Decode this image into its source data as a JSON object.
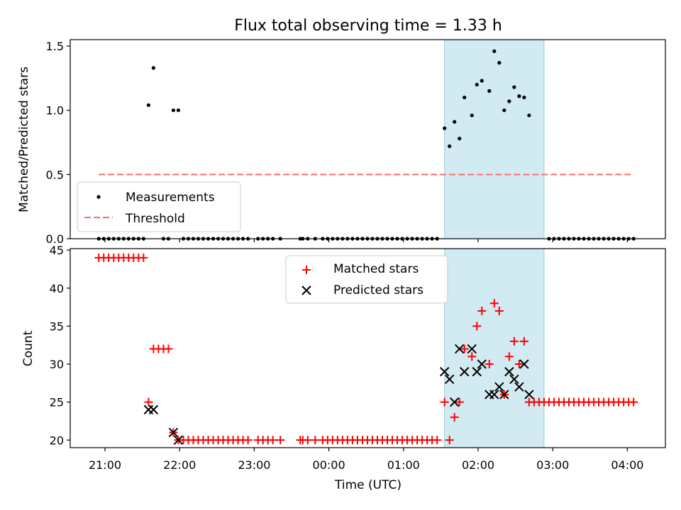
{
  "chart_data": [
    {
      "panel": "top",
      "type": "scatter",
      "title": "Flux total observing time = 1.33 h",
      "ylabel": "Matched/Predicted stars",
      "ylim": [
        0,
        1.55
      ],
      "yticks": [
        0.0,
        0.5,
        1.0,
        1.5
      ],
      "ytick_labels": [
        "0.0",
        "0.5",
        "1.0",
        "1.5"
      ],
      "shaded_interval": {
        "start": "01:33",
        "end": "02:53",
        "color": "#add8e6"
      },
      "legend": {
        "position": "lower-left",
        "entries": [
          "Measurements",
          "Threshold"
        ]
      },
      "threshold": {
        "name": "Threshold",
        "value": 0.5,
        "x_start": "20:55",
        "x_end": "04:05",
        "color": "#ff6b6b",
        "style": "dashed"
      },
      "series": [
        {
          "name": "Measurements",
          "marker": "dot",
          "color": "#000000",
          "points": [
            [
              "20:55",
              0
            ],
            [
              "20:59",
              0
            ],
            [
              "21:03",
              0
            ],
            [
              "21:07",
              0
            ],
            [
              "21:11",
              0
            ],
            [
              "21:15",
              0
            ],
            [
              "21:19",
              0
            ],
            [
              "21:23",
              0
            ],
            [
              "21:27",
              0
            ],
            [
              "21:31",
              0
            ],
            [
              "21:35",
              1.04
            ],
            [
              "21:39",
              1.33
            ],
            [
              "21:47",
              0
            ],
            [
              "21:51",
              0
            ],
            [
              "21:55",
              1.0
            ],
            [
              "21:59",
              1.0
            ],
            [
              "22:03",
              0
            ],
            [
              "22:07",
              0
            ],
            [
              "22:11",
              0
            ],
            [
              "22:15",
              0
            ],
            [
              "22:19",
              0
            ],
            [
              "22:23",
              0
            ],
            [
              "22:27",
              0
            ],
            [
              "22:31",
              0
            ],
            [
              "22:35",
              0
            ],
            [
              "22:39",
              0
            ],
            [
              "22:43",
              0
            ],
            [
              "22:47",
              0
            ],
            [
              "22:51",
              0
            ],
            [
              "22:55",
              0
            ],
            [
              "23:03",
              0
            ],
            [
              "23:07",
              0
            ],
            [
              "23:11",
              0
            ],
            [
              "23:15",
              0
            ],
            [
              "23:21",
              0
            ],
            [
              "23:37",
              0
            ],
            [
              "23:39",
              0
            ],
            [
              "23:43",
              0
            ],
            [
              "23:49",
              0
            ],
            [
              "23:55",
              0
            ],
            [
              "23:59",
              0
            ],
            [
              "00:03",
              0
            ],
            [
              "00:07",
              0
            ],
            [
              "00:11",
              0
            ],
            [
              "00:15",
              0
            ],
            [
              "00:19",
              0
            ],
            [
              "00:23",
              0
            ],
            [
              "00:27",
              0
            ],
            [
              "00:31",
              0
            ],
            [
              "00:35",
              0
            ],
            [
              "00:39",
              0
            ],
            [
              "00:43",
              0
            ],
            [
              "00:47",
              0
            ],
            [
              "00:51",
              0
            ],
            [
              "00:55",
              0
            ],
            [
              "00:59",
              0
            ],
            [
              "01:03",
              0
            ],
            [
              "01:07",
              0
            ],
            [
              "01:11",
              0
            ],
            [
              "01:15",
              0
            ],
            [
              "01:19",
              0
            ],
            [
              "01:23",
              0
            ],
            [
              "01:27",
              0
            ],
            [
              "01:33",
              0.86
            ],
            [
              "01:37",
              0.72
            ],
            [
              "01:41",
              0.91
            ],
            [
              "01:45",
              0.78
            ],
            [
              "01:49",
              1.1
            ],
            [
              "01:55",
              0.96
            ],
            [
              "01:59",
              1.2
            ],
            [
              "02:03",
              1.23
            ],
            [
              "02:09",
              1.15
            ],
            [
              "02:13",
              1.46
            ],
            [
              "02:17",
              1.37
            ],
            [
              "02:21",
              1.0
            ],
            [
              "02:25",
              1.07
            ],
            [
              "02:29",
              1.18
            ],
            [
              "02:33",
              1.11
            ],
            [
              "02:37",
              1.1
            ],
            [
              "02:41",
              0.96
            ],
            [
              "02:57",
              0
            ],
            [
              "03:01",
              0
            ],
            [
              "03:05",
              0
            ],
            [
              "03:09",
              0
            ],
            [
              "03:13",
              0
            ],
            [
              "03:17",
              0
            ],
            [
              "03:21",
              0
            ],
            [
              "03:25",
              0
            ],
            [
              "03:29",
              0
            ],
            [
              "03:33",
              0
            ],
            [
              "03:37",
              0
            ],
            [
              "03:41",
              0
            ],
            [
              "03:45",
              0
            ],
            [
              "03:49",
              0
            ],
            [
              "03:53",
              0
            ],
            [
              "03:57",
              0
            ],
            [
              "04:01",
              0
            ],
            [
              "04:05",
              0
            ]
          ]
        }
      ]
    },
    {
      "panel": "bottom",
      "type": "scatter",
      "xlabel": "Time (UTC)",
      "ylabel": "Count",
      "ylim": [
        19,
        45.2
      ],
      "yticks": [
        20,
        25,
        30,
        35,
        40,
        45
      ],
      "ytick_labels": [
        "20",
        "25",
        "30",
        "35",
        "40",
        "45"
      ],
      "xticks": [
        "21:00",
        "22:00",
        "23:00",
        "00:00",
        "01:00",
        "02:00",
        "03:00",
        "04:00"
      ],
      "shaded_interval": {
        "start": "01:33",
        "end": "02:53",
        "color": "#add8e6"
      },
      "legend": {
        "position": "upper-center",
        "entries": [
          "Matched stars",
          "Predicted stars"
        ]
      },
      "series": [
        {
          "name": "Matched stars",
          "marker": "plus",
          "color": "#ff0000",
          "points": [
            [
              "20:55",
              44
            ],
            [
              "20:59",
              44
            ],
            [
              "21:03",
              44
            ],
            [
              "21:07",
              44
            ],
            [
              "21:11",
              44
            ],
            [
              "21:15",
              44
            ],
            [
              "21:19",
              44
            ],
            [
              "21:23",
              44
            ],
            [
              "21:27",
              44
            ],
            [
              "21:31",
              44
            ],
            [
              "21:35",
              25
            ],
            [
              "21:39",
              32
            ],
            [
              "21:43",
              32
            ],
            [
              "21:47",
              32
            ],
            [
              "21:51",
              32
            ],
            [
              "21:55",
              21
            ],
            [
              "21:59",
              20
            ],
            [
              "22:03",
              20
            ],
            [
              "22:07",
              20
            ],
            [
              "22:11",
              20
            ],
            [
              "22:15",
              20
            ],
            [
              "22:19",
              20
            ],
            [
              "22:23",
              20
            ],
            [
              "22:27",
              20
            ],
            [
              "22:31",
              20
            ],
            [
              "22:35",
              20
            ],
            [
              "22:39",
              20
            ],
            [
              "22:43",
              20
            ],
            [
              "22:47",
              20
            ],
            [
              "22:51",
              20
            ],
            [
              "22:55",
              20
            ],
            [
              "23:03",
              20
            ],
            [
              "23:07",
              20
            ],
            [
              "23:11",
              20
            ],
            [
              "23:15",
              20
            ],
            [
              "23:21",
              20
            ],
            [
              "23:37",
              20
            ],
            [
              "23:39",
              20
            ],
            [
              "23:43",
              20
            ],
            [
              "23:49",
              20
            ],
            [
              "23:55",
              20
            ],
            [
              "23:59",
              20
            ],
            [
              "00:03",
              20
            ],
            [
              "00:07",
              20
            ],
            [
              "00:11",
              20
            ],
            [
              "00:15",
              20
            ],
            [
              "00:19",
              20
            ],
            [
              "00:23",
              20
            ],
            [
              "00:27",
              20
            ],
            [
              "00:31",
              20
            ],
            [
              "00:35",
              20
            ],
            [
              "00:39",
              20
            ],
            [
              "00:43",
              20
            ],
            [
              "00:47",
              20
            ],
            [
              "00:51",
              20
            ],
            [
              "00:55",
              20
            ],
            [
              "00:59",
              20
            ],
            [
              "01:03",
              20
            ],
            [
              "01:07",
              20
            ],
            [
              "01:11",
              20
            ],
            [
              "01:15",
              20
            ],
            [
              "01:19",
              20
            ],
            [
              "01:23",
              20
            ],
            [
              "01:27",
              20
            ],
            [
              "01:33",
              25
            ],
            [
              "01:37",
              20
            ],
            [
              "01:41",
              23
            ],
            [
              "01:45",
              25
            ],
            [
              "01:49",
              32
            ],
            [
              "01:55",
              31
            ],
            [
              "01:59",
              35
            ],
            [
              "02:03",
              37
            ],
            [
              "02:09",
              30
            ],
            [
              "02:13",
              38
            ],
            [
              "02:17",
              37
            ],
            [
              "02:21",
              26
            ],
            [
              "02:25",
              31
            ],
            [
              "02:29",
              33
            ],
            [
              "02:33",
              30
            ],
            [
              "02:37",
              33
            ],
            [
              "02:41",
              25
            ],
            [
              "02:45",
              25
            ],
            [
              "02:49",
              25
            ],
            [
              "02:53",
              25
            ],
            [
              "02:57",
              25
            ],
            [
              "03:01",
              25
            ],
            [
              "03:05",
              25
            ],
            [
              "03:09",
              25
            ],
            [
              "03:13",
              25
            ],
            [
              "03:17",
              25
            ],
            [
              "03:21",
              25
            ],
            [
              "03:25",
              25
            ],
            [
              "03:29",
              25
            ],
            [
              "03:33",
              25
            ],
            [
              "03:37",
              25
            ],
            [
              "03:41",
              25
            ],
            [
              "03:45",
              25
            ],
            [
              "03:49",
              25
            ],
            [
              "03:53",
              25
            ],
            [
              "03:57",
              25
            ],
            [
              "04:01",
              25
            ],
            [
              "04:05",
              25
            ]
          ]
        },
        {
          "name": "Predicted stars",
          "marker": "x",
          "color": "#000000",
          "points": [
            [
              "21:35",
              24
            ],
            [
              "21:39",
              24
            ],
            [
              "21:55",
              21
            ],
            [
              "21:59",
              20
            ],
            [
              "01:33",
              29
            ],
            [
              "01:37",
              28
            ],
            [
              "01:41",
              25
            ],
            [
              "01:45",
              32
            ],
            [
              "01:49",
              29
            ],
            [
              "01:55",
              32
            ],
            [
              "01:59",
              29
            ],
            [
              "02:03",
              30
            ],
            [
              "02:09",
              26
            ],
            [
              "02:13",
              26
            ],
            [
              "02:17",
              27
            ],
            [
              "02:21",
              26
            ],
            [
              "02:25",
              29
            ],
            [
              "02:29",
              28
            ],
            [
              "02:33",
              27
            ],
            [
              "02:37",
              30
            ],
            [
              "02:41",
              26
            ]
          ]
        }
      ]
    }
  ]
}
